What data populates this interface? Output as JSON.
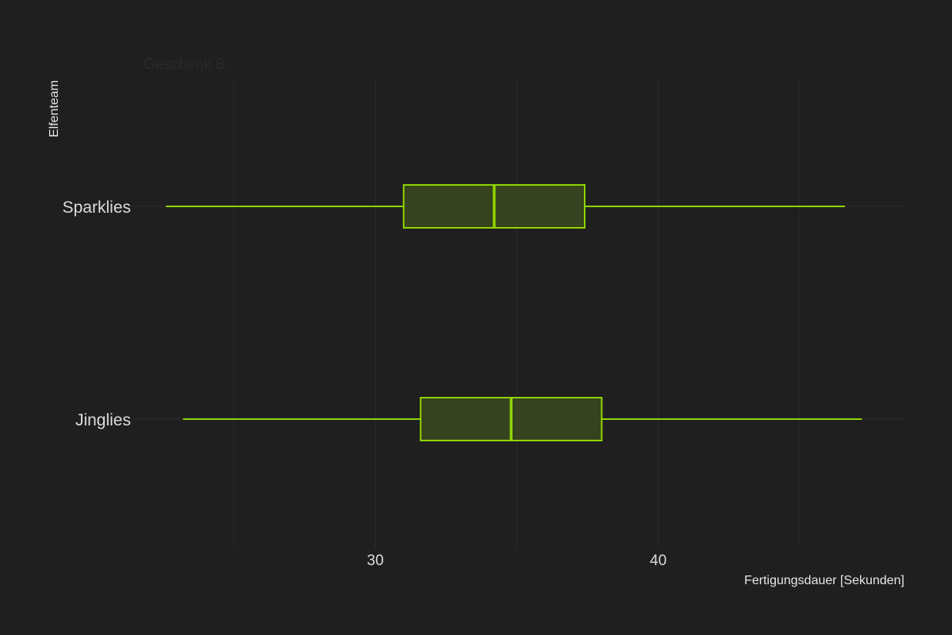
{
  "chart_data": {
    "type": "boxplot",
    "orientation": "horizontal",
    "title": "Geschenk B",
    "xlabel": "Fertigungsdauer [Sekunden]",
    "ylabel": "Elfenteam",
    "xlim": [
      21.5,
      48.7
    ],
    "grid": true,
    "x_major_ticks": [
      30,
      40
    ],
    "x_minor_gridlines": [
      25,
      35,
      45
    ],
    "categories": [
      "Sparklies",
      "Jinglies"
    ],
    "boxes": [
      {
        "category": "Sparklies",
        "min": 22.6,
        "q1": 31.0,
        "median": 34.2,
        "q3": 37.4,
        "max": 46.6
      },
      {
        "category": "Jinglies",
        "min": 23.2,
        "q1": 31.6,
        "median": 34.8,
        "q3": 38.0,
        "max": 47.2
      }
    ],
    "colors": {
      "background": "#1f1f1f",
      "box_stroke": "#8fd400",
      "box_fill": "#3b4a1e",
      "grid": "#2c2c2c",
      "title": "#2a2a2a",
      "text": "#dcdcdc"
    }
  }
}
